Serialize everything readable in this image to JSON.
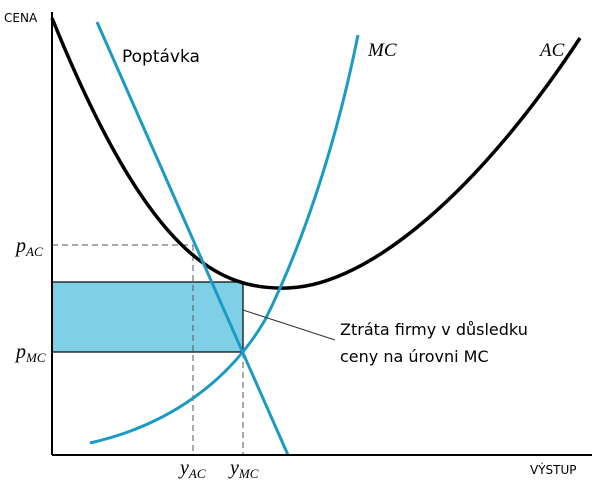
{
  "axes": {
    "y_label": "CENA",
    "x_label": "VÝSTUP"
  },
  "curves": {
    "demand": "Poptávka",
    "mc": "MC",
    "ac": "AC"
  },
  "prices": [
    {
      "base": "p",
      "sub": "AC"
    },
    {
      "base": "p",
      "sub": "MC"
    }
  ],
  "quantities": [
    {
      "base": "y",
      "sub": "AC"
    },
    {
      "base": "y",
      "sub": "MC"
    }
  ],
  "annotation": {
    "lines": [
      "Ztráta firmy v důsledku",
      "ceny na úrovni MC"
    ]
  }
}
